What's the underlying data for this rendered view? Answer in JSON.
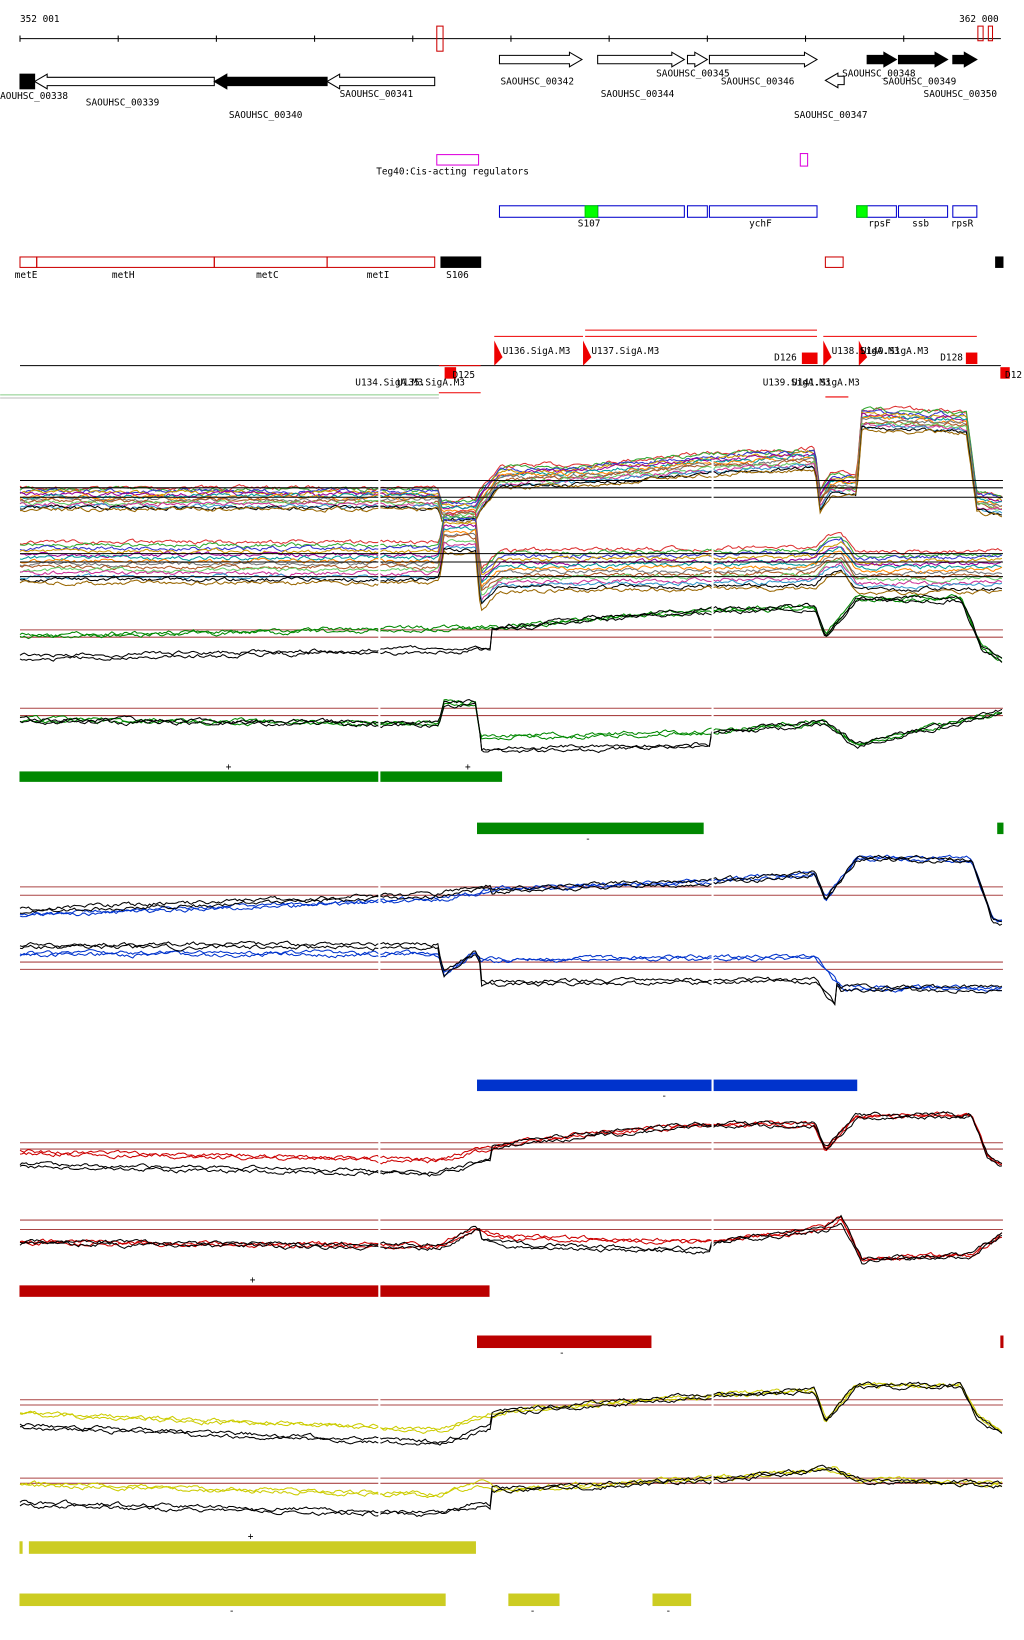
{
  "ruler": {
    "start": "352 001",
    "end": "362 000"
  },
  "genes": [
    "AOUHSC_00338",
    "SAOUHSC_00339",
    "SAOUHSC_00340",
    "SAOUHSC_00341",
    "SAOUHSC_00342",
    "SAOUHSC_00344",
    "SAOUHSC_00345",
    "SAOUHSC_00346",
    "SAOUHSC_00347",
    "SAOUHSC_00348",
    "SAOUHSC_00349",
    "SAOUHSC_00350"
  ],
  "regulators": "Teg40:Cis-acting regulators",
  "operons": [
    "S107",
    "ychF",
    "rpsF",
    "ssb",
    "rpsR"
  ],
  "met_operon": [
    "metE",
    "metH",
    "metC",
    "metI",
    "S106"
  ],
  "tss": [
    "U136.SigA.M3",
    "U137.SigA.M3",
    "D126",
    "U138.SigA.M3",
    "U140.SigA.M3",
    "D128",
    "D125",
    "U134.SigA.M3",
    "U135.SigA.M3",
    "U139.SigA.M3",
    "U141.SigA.M3",
    "D12"
  ],
  "signs": [
    "+",
    "+",
    "-",
    "-",
    "+",
    "-",
    "+",
    "-",
    "-",
    "-"
  ]
}
